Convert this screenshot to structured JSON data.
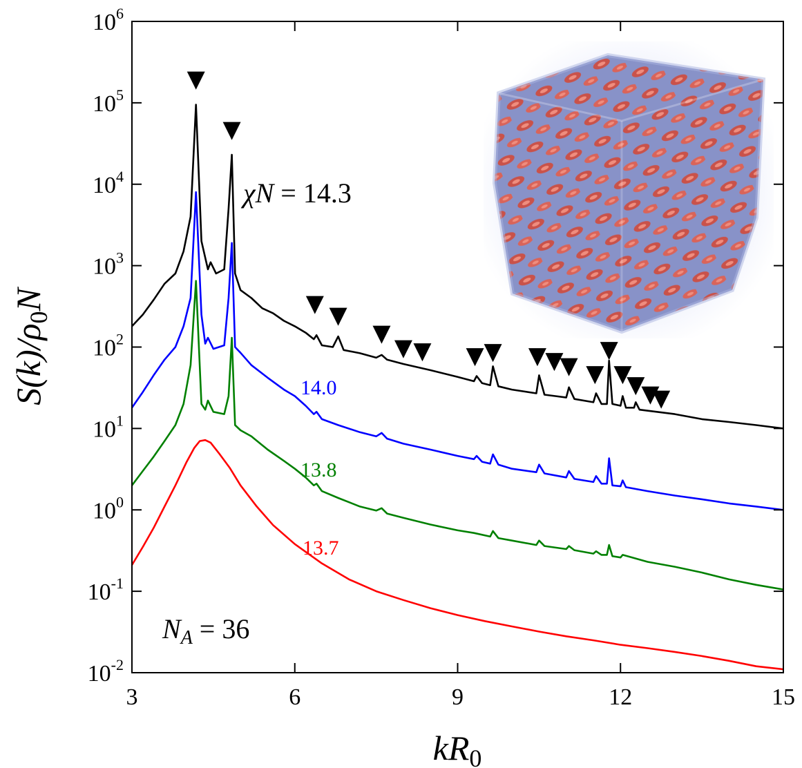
{
  "chart_data": {
    "type": "line",
    "title": "",
    "xlabel": "kR0",
    "xlabel_parts": {
      "base": "kR",
      "sub": "0"
    },
    "ylabel_parts": {
      "a": "S(k)/ρ",
      "sub": "0",
      "b": "N"
    },
    "x_range": [
      3,
      15
    ],
    "x_ticks": [
      3,
      6,
      9,
      12,
      15
    ],
    "y_scale": "log",
    "y_range": [
      0.01,
      1000000
    ],
    "y_ticks": [
      {
        "base": "10",
        "exp": "-2"
      },
      {
        "base": "10",
        "exp": "-1"
      },
      {
        "base": "10",
        "exp": "0"
      },
      {
        "base": "10",
        "exp": "1"
      },
      {
        "base": "10",
        "exp": "2"
      },
      {
        "base": "10",
        "exp": "3"
      },
      {
        "base": "10",
        "exp": "4"
      },
      {
        "base": "10",
        "exp": "5"
      },
      {
        "base": "10",
        "exp": "6"
      }
    ],
    "annotation_NA": {
      "sym": "N",
      "sub": "A",
      "rest": " = 36"
    },
    "annotation_chiN": {
      "sym": "χN",
      "rest": " = 14.3"
    },
    "series": [
      {
        "name": "χN = 14.3",
        "label": "χN = 14.3",
        "color": "#000000",
        "points": [
          [
            3.0,
            180
          ],
          [
            3.2,
            250
          ],
          [
            3.4,
            380
          ],
          [
            3.6,
            600
          ],
          [
            3.8,
            800
          ],
          [
            3.95,
            1500
          ],
          [
            4.08,
            4000
          ],
          [
            4.18,
            95000
          ],
          [
            4.28,
            2000
          ],
          [
            4.4,
            900
          ],
          [
            4.45,
            1100
          ],
          [
            4.55,
            800
          ],
          [
            4.7,
            900
          ],
          [
            4.78,
            5000
          ],
          [
            4.84,
            23000
          ],
          [
            4.9,
            800
          ],
          [
            5.0,
            500
          ],
          [
            5.2,
            400
          ],
          [
            5.4,
            300
          ],
          [
            5.6,
            260
          ],
          [
            5.8,
            210
          ],
          [
            6.0,
            180
          ],
          [
            6.2,
            150
          ],
          [
            6.35,
            125
          ],
          [
            6.4,
            140
          ],
          [
            6.5,
            105
          ],
          [
            6.7,
            100
          ],
          [
            6.8,
            135
          ],
          [
            6.9,
            92
          ],
          [
            7.2,
            84
          ],
          [
            7.5,
            74
          ],
          [
            7.6,
            80
          ],
          [
            7.7,
            70
          ],
          [
            8.0,
            62
          ],
          [
            8.5,
            52
          ],
          [
            9.0,
            43
          ],
          [
            9.3,
            38
          ],
          [
            9.35,
            44
          ],
          [
            9.45,
            36
          ],
          [
            9.6,
            34
          ],
          [
            9.65,
            58
          ],
          [
            9.75,
            33
          ],
          [
            10.0,
            30
          ],
          [
            10.45,
            27
          ],
          [
            10.5,
            45
          ],
          [
            10.6,
            26
          ],
          [
            10.8,
            25
          ],
          [
            11.0,
            24
          ],
          [
            11.05,
            32
          ],
          [
            11.15,
            23
          ],
          [
            11.5,
            21
          ],
          [
            11.55,
            27
          ],
          [
            11.65,
            20
          ],
          [
            11.75,
            20
          ],
          [
            11.79,
            68
          ],
          [
            11.85,
            20
          ],
          [
            12.0,
            19
          ],
          [
            12.04,
            25
          ],
          [
            12.1,
            18
          ],
          [
            12.25,
            18
          ],
          [
            12.28,
            21
          ],
          [
            12.35,
            17
          ],
          [
            13.0,
            15
          ],
          [
            13.5,
            13
          ],
          [
            14.0,
            12
          ],
          [
            14.5,
            11
          ],
          [
            15.0,
            10
          ]
        ]
      },
      {
        "name": "14.0",
        "label": "14.0",
        "color": "#0000ff",
        "points": [
          [
            3.0,
            18
          ],
          [
            3.2,
            28
          ],
          [
            3.4,
            45
          ],
          [
            3.6,
            70
          ],
          [
            3.8,
            100
          ],
          [
            3.95,
            180
          ],
          [
            4.08,
            400
          ],
          [
            4.18,
            8000
          ],
          [
            4.28,
            250
          ],
          [
            4.35,
            110
          ],
          [
            4.4,
            130
          ],
          [
            4.5,
            95
          ],
          [
            4.7,
            105
          ],
          [
            4.78,
            400
          ],
          [
            4.84,
            1900
          ],
          [
            4.9,
            100
          ],
          [
            5.0,
            85
          ],
          [
            5.2,
            60
          ],
          [
            5.5,
            42
          ],
          [
            5.8,
            30
          ],
          [
            6.0,
            25
          ],
          [
            6.2,
            19
          ],
          [
            6.35,
            15
          ],
          [
            6.4,
            16
          ],
          [
            6.5,
            13
          ],
          [
            6.8,
            11
          ],
          [
            7.2,
            9
          ],
          [
            7.5,
            8
          ],
          [
            7.6,
            8.8
          ],
          [
            7.7,
            7.5
          ],
          [
            8.0,
            6.5
          ],
          [
            8.5,
            5.5
          ],
          [
            9.0,
            4.6
          ],
          [
            9.3,
            4.2
          ],
          [
            9.35,
            4.6
          ],
          [
            9.45,
            3.9
          ],
          [
            9.6,
            3.7
          ],
          [
            9.65,
            4.8
          ],
          [
            9.75,
            3.6
          ],
          [
            10.0,
            3.2
          ],
          [
            10.45,
            2.9
          ],
          [
            10.5,
            3.6
          ],
          [
            10.6,
            2.8
          ],
          [
            11.0,
            2.5
          ],
          [
            11.05,
            3.0
          ],
          [
            11.15,
            2.4
          ],
          [
            11.5,
            2.2
          ],
          [
            11.55,
            2.6
          ],
          [
            11.65,
            2.1
          ],
          [
            11.75,
            2.1
          ],
          [
            11.79,
            4.3
          ],
          [
            11.85,
            2.0
          ],
          [
            12.0,
            1.95
          ],
          [
            12.04,
            2.3
          ],
          [
            12.1,
            1.9
          ],
          [
            12.5,
            1.7
          ],
          [
            13.0,
            1.5
          ],
          [
            13.5,
            1.35
          ],
          [
            14.0,
            1.2
          ],
          [
            14.5,
            1.1
          ],
          [
            15.0,
            1.0
          ]
        ]
      },
      {
        "name": "13.8",
        "label": "13.8",
        "color": "#008000",
        "points": [
          [
            3.0,
            2.0
          ],
          [
            3.2,
            3.0
          ],
          [
            3.4,
            4.5
          ],
          [
            3.6,
            7
          ],
          [
            3.8,
            11
          ],
          [
            3.95,
            20
          ],
          [
            4.08,
            60
          ],
          [
            4.18,
            650
          ],
          [
            4.28,
            20
          ],
          [
            4.35,
            17
          ],
          [
            4.4,
            22
          ],
          [
            4.5,
            16
          ],
          [
            4.7,
            15
          ],
          [
            4.78,
            25
          ],
          [
            4.84,
            130
          ],
          [
            4.9,
            11
          ],
          [
            5.0,
            9.5
          ],
          [
            5.2,
            8
          ],
          [
            5.5,
            5.5
          ],
          [
            5.8,
            4
          ],
          [
            6.0,
            3.2
          ],
          [
            6.2,
            2.5
          ],
          [
            6.35,
            2.0
          ],
          [
            6.4,
            2.1
          ],
          [
            6.5,
            1.7
          ],
          [
            6.8,
            1.4
          ],
          [
            7.2,
            1.1
          ],
          [
            7.5,
            0.98
          ],
          [
            7.6,
            1.05
          ],
          [
            7.7,
            0.9
          ],
          [
            8.0,
            0.8
          ],
          [
            8.5,
            0.66
          ],
          [
            9.0,
            0.56
          ],
          [
            9.3,
            0.52
          ],
          [
            9.6,
            0.47
          ],
          [
            9.65,
            0.55
          ],
          [
            9.75,
            0.45
          ],
          [
            10.0,
            0.42
          ],
          [
            10.45,
            0.37
          ],
          [
            10.5,
            0.42
          ],
          [
            10.6,
            0.36
          ],
          [
            11.0,
            0.33
          ],
          [
            11.05,
            0.36
          ],
          [
            11.15,
            0.32
          ],
          [
            11.5,
            0.29
          ],
          [
            11.55,
            0.31
          ],
          [
            11.65,
            0.28
          ],
          [
            11.75,
            0.28
          ],
          [
            11.79,
            0.37
          ],
          [
            11.85,
            0.27
          ],
          [
            12.0,
            0.26
          ],
          [
            12.04,
            0.28
          ],
          [
            12.5,
            0.23
          ],
          [
            13.0,
            0.2
          ],
          [
            13.5,
            0.17
          ],
          [
            14.0,
            0.14
          ],
          [
            14.5,
            0.12
          ],
          [
            15.0,
            0.105
          ]
        ]
      },
      {
        "name": "13.7",
        "label": "13.7",
        "color": "#ff0000",
        "points": [
          [
            3.0,
            0.21
          ],
          [
            3.2,
            0.35
          ],
          [
            3.4,
            0.6
          ],
          [
            3.6,
            1.1
          ],
          [
            3.8,
            2.0
          ],
          [
            4.0,
            3.8
          ],
          [
            4.15,
            5.8
          ],
          [
            4.25,
            7.0
          ],
          [
            4.35,
            7.2
          ],
          [
            4.45,
            6.7
          ],
          [
            4.6,
            5.0
          ],
          [
            4.8,
            3.3
          ],
          [
            5.0,
            2.0
          ],
          [
            5.3,
            1.1
          ],
          [
            5.6,
            0.65
          ],
          [
            6.0,
            0.38
          ],
          [
            6.5,
            0.22
          ],
          [
            7.0,
            0.14
          ],
          [
            7.5,
            0.1
          ],
          [
            8.0,
            0.078
          ],
          [
            8.5,
            0.062
          ],
          [
            9.0,
            0.051
          ],
          [
            9.5,
            0.043
          ],
          [
            10.0,
            0.037
          ],
          [
            10.5,
            0.032
          ],
          [
            11.0,
            0.028
          ],
          [
            11.5,
            0.025
          ],
          [
            12.0,
            0.022
          ],
          [
            12.5,
            0.02
          ],
          [
            13.0,
            0.018
          ],
          [
            13.5,
            0.016
          ],
          [
            14.0,
            0.014
          ],
          [
            14.5,
            0.012
          ],
          [
            15.0,
            0.011
          ]
        ]
      }
    ],
    "marker_symbol": "▼",
    "markers": [
      {
        "x": 4.18,
        "y": 200000
      },
      {
        "x": 4.84,
        "y": 48000
      },
      {
        "x": 6.37,
        "y": 350
      },
      {
        "x": 6.8,
        "y": 250
      },
      {
        "x": 7.6,
        "y": 150
      },
      {
        "x": 8.0,
        "y": 100
      },
      {
        "x": 8.35,
        "y": 92
      },
      {
        "x": 9.32,
        "y": 80
      },
      {
        "x": 9.65,
        "y": 90
      },
      {
        "x": 10.47,
        "y": 80
      },
      {
        "x": 10.78,
        "y": 70
      },
      {
        "x": 11.05,
        "y": 60
      },
      {
        "x": 11.53,
        "y": 48
      },
      {
        "x": 11.79,
        "y": 95
      },
      {
        "x": 12.04,
        "y": 48
      },
      {
        "x": 12.28,
        "y": 35
      },
      {
        "x": 12.55,
        "y": 27
      },
      {
        "x": 12.75,
        "y": 24
      }
    ]
  }
}
